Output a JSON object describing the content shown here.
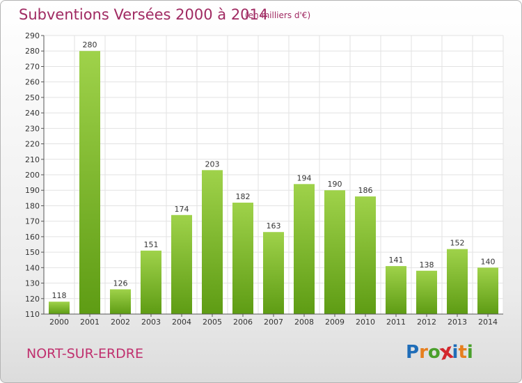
{
  "header": {
    "title": "Subventions Versées 2000 à 2014",
    "unit": "(en milliers d'€)"
  },
  "footer": {
    "commune": "NORT-SUR-ERDRE",
    "logo_letters": [
      "P",
      "r",
      "o",
      "x",
      "i",
      "t",
      "i"
    ],
    "logo_colors": [
      "#1f6db8",
      "#e77f1e",
      "#4aa02c",
      "#d3272d",
      "#1f6db8",
      "#e77f1e",
      "#4aa02c"
    ]
  },
  "colors": {
    "bar_light": "#9fd24a",
    "bar_dark": "#5e9c14",
    "title": "#a02a62",
    "grid": "#e2e2e2",
    "axis": "#555555"
  },
  "chart_data": {
    "type": "bar",
    "title": "Subventions Versées 2000 à 2014",
    "subtitle": "(en milliers d'€)",
    "xlabel": "",
    "ylabel": "",
    "categories": [
      "2000",
      "2001",
      "2002",
      "2003",
      "2004",
      "2005",
      "2006",
      "2007",
      "2008",
      "2009",
      "2010",
      "2011",
      "2012",
      "2013",
      "2014"
    ],
    "values": [
      118,
      280,
      126,
      151,
      174,
      203,
      182,
      163,
      194,
      190,
      186,
      141,
      138,
      152,
      140
    ],
    "ylim": [
      110,
      290
    ],
    "yticks": [
      110,
      120,
      130,
      140,
      150,
      160,
      170,
      180,
      190,
      200,
      210,
      220,
      230,
      240,
      250,
      260,
      270,
      280,
      290
    ],
    "grid": true,
    "data_labels": true
  }
}
